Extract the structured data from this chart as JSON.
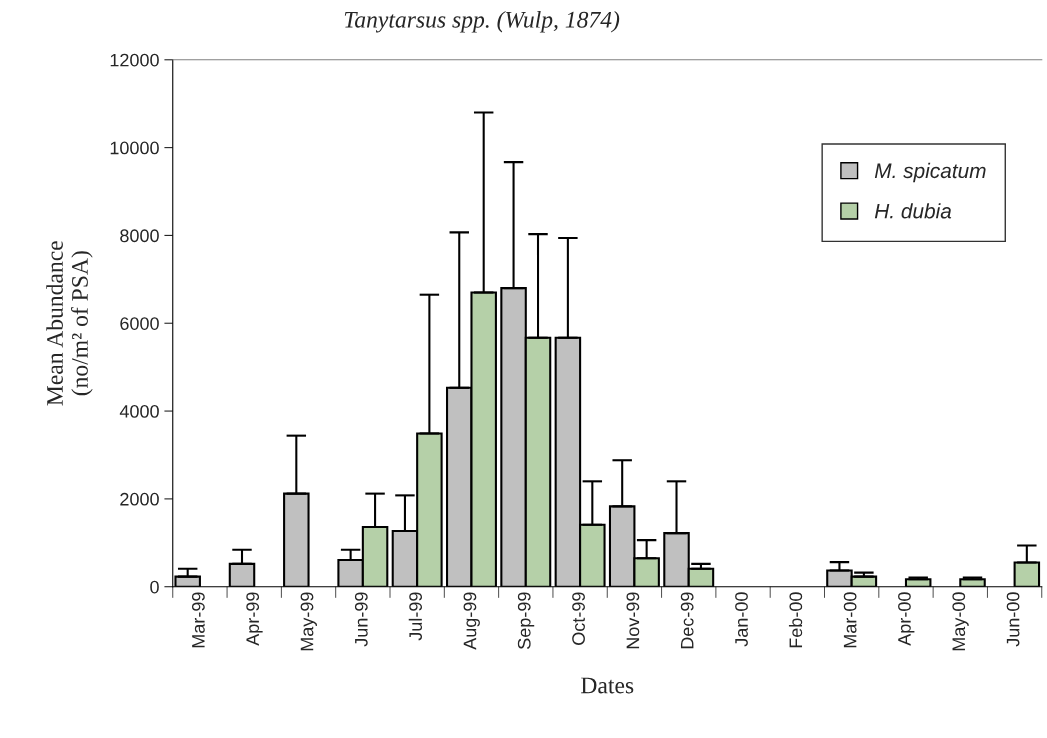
{
  "chart_data": {
    "type": "bar",
    "title": "Tanytarsus spp. (Wulp, 1874)",
    "xlabel": "Dates",
    "ylabel": "Mean Abundance\n(no/m² of PSA)",
    "categories": [
      "Mar-99",
      "Apr-99",
      "May-99",
      "Jun-99",
      "Jul-99",
      "Aug-99",
      "Sep-99",
      "Oct-99",
      "Nov-99",
      "Dec-99",
      "Jan-00",
      "Feb-00",
      "Mar-00",
      "Apr-00",
      "May-00",
      "Jun-00"
    ],
    "series": [
      {
        "name": "M. spicatum",
        "color": "#c0c0c0",
        "values": [
          230,
          520,
          2120,
          610,
          1270,
          4530,
          6800,
          5670,
          1830,
          1220,
          0,
          0,
          370,
          0,
          0,
          0
        ],
        "errors": [
          [
            230,
            410
          ],
          [
            520,
            840
          ],
          [
            2120,
            3440
          ],
          [
            610,
            840
          ],
          [
            1270,
            2080
          ],
          [
            4530,
            8070
          ],
          [
            6800,
            9670
          ],
          [
            5670,
            7940
          ],
          [
            1830,
            2880
          ],
          [
            1220,
            2400
          ],
          null,
          null,
          [
            370,
            560
          ],
          null,
          null,
          null
        ]
      },
      {
        "name": "H. dubia",
        "color": "#b5d0a8",
        "values": [
          0,
          0,
          0,
          1360,
          3490,
          6700,
          5670,
          1410,
          650,
          410,
          0,
          0,
          230,
          170,
          170,
          550
        ],
        "errors": [
          null,
          null,
          null,
          [
            1360,
            2120
          ],
          [
            3490,
            6650
          ],
          [
            6700,
            10800
          ],
          [
            5670,
            8030
          ],
          [
            1410,
            2400
          ],
          [
            650,
            1060
          ],
          [
            410,
            520
          ],
          null,
          null,
          [
            230,
            320
          ],
          [
            170,
            210
          ],
          [
            170,
            210
          ],
          [
            550,
            940
          ]
        ]
      }
    ],
    "ylim": [
      0,
      12000
    ],
    "yticks": [
      0,
      2000,
      4000,
      6000,
      8000,
      10000,
      12000
    ],
    "grid": false,
    "legend": "top right"
  }
}
